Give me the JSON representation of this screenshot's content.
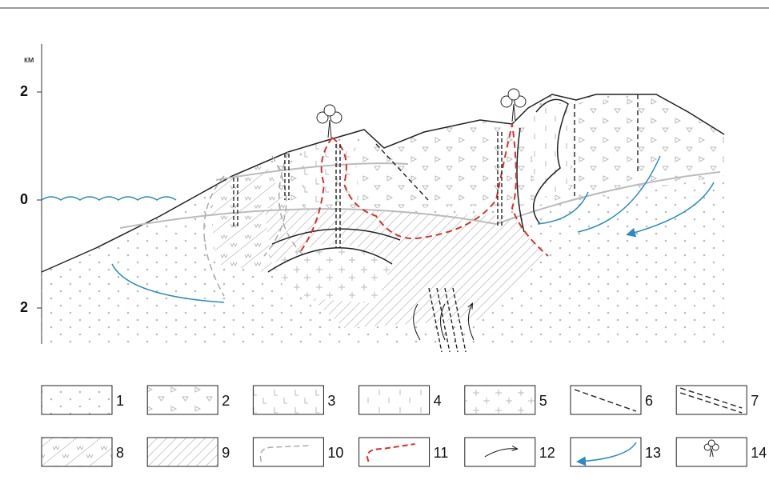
{
  "axis": {
    "unit": "км",
    "ticks": [
      "2",
      "0",
      "2"
    ]
  },
  "legend": [
    "1",
    "2",
    "3",
    "4",
    "5",
    "6",
    "7",
    "8",
    "9",
    "10",
    "11",
    "12",
    "13",
    "14"
  ]
}
